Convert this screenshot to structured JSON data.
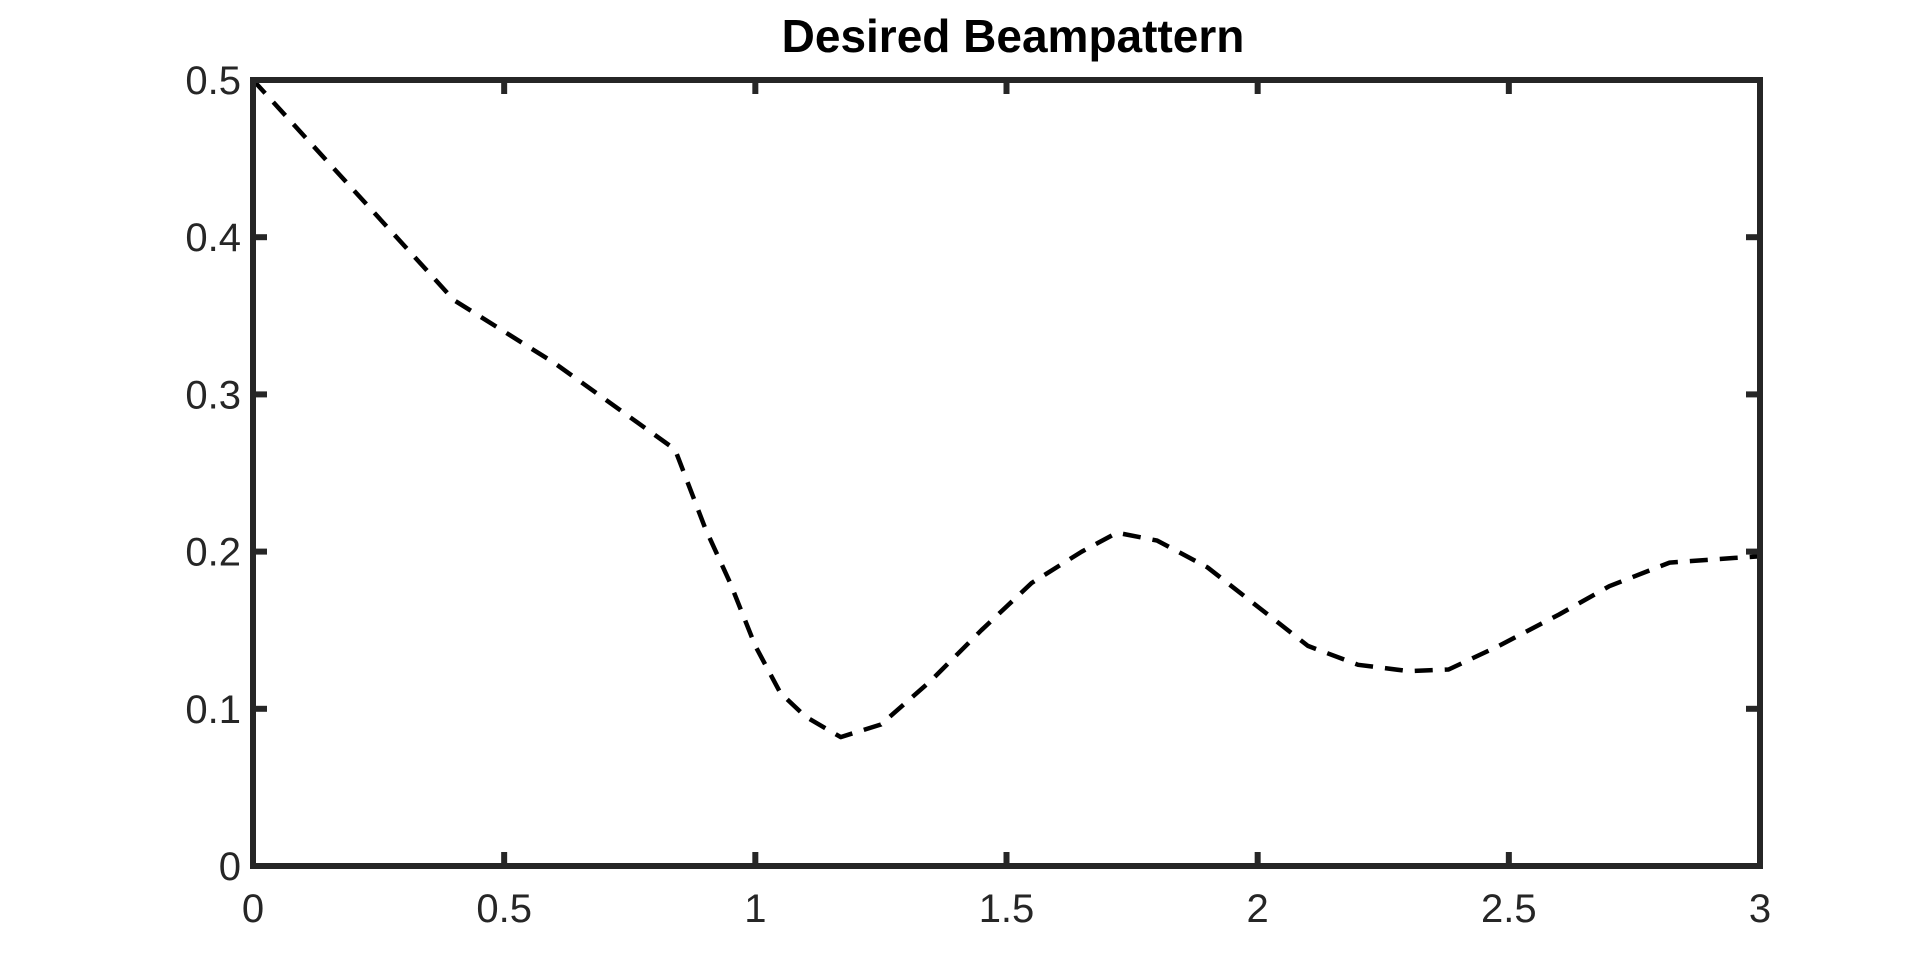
{
  "chart_data": {
    "type": "line",
    "title": "Desired Beampattern",
    "xlabel": "",
    "ylabel": "",
    "xlim": [
      0,
      3
    ],
    "ylim": [
      0,
      0.5
    ],
    "xticks": [
      0,
      0.5,
      1,
      1.5,
      2,
      2.5,
      3
    ],
    "xtick_labels": [
      "0",
      "0.5",
      "1",
      "1.5",
      "2",
      "2.5",
      "3"
    ],
    "yticks": [
      0,
      0.1,
      0.2,
      0.3,
      0.4,
      0.5
    ],
    "ytick_labels": [
      "0",
      "0.1",
      "0.2",
      "0.3",
      "0.4",
      "0.5"
    ],
    "grid": false,
    "series": [
      {
        "line_style": "dashed",
        "color": "#000000",
        "x": [
          0,
          0.2,
          0.4,
          0.6,
          0.84,
          0.9,
          0.95,
          1.0,
          1.05,
          1.1,
          1.17,
          1.25,
          1.35,
          1.45,
          1.55,
          1.65,
          1.72,
          1.8,
          1.9,
          2.0,
          2.1,
          2.2,
          2.3,
          2.38,
          2.48,
          2.6,
          2.7,
          2.82,
          2.95,
          3.0
        ],
        "y": [
          0.5,
          0.43,
          0.36,
          0.32,
          0.265,
          0.215,
          0.18,
          0.14,
          0.11,
          0.095,
          0.082,
          0.09,
          0.118,
          0.15,
          0.18,
          0.2,
          0.212,
          0.207,
          0.19,
          0.165,
          0.14,
          0.128,
          0.124,
          0.125,
          0.14,
          0.16,
          0.178,
          0.193,
          0.196,
          0.197
        ]
      }
    ]
  }
}
